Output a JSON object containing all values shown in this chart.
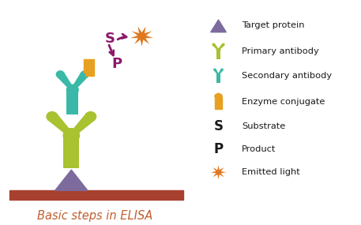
{
  "bg_color": "#ffffff",
  "title": "Basic steps in ELISA",
  "title_color": "#c06030",
  "title_fontsize": 10.5,
  "colors": {
    "target_protein": "#7d6b9e",
    "primary_ab": "#a8c230",
    "secondary_ab": "#3ab8a8",
    "enzyme": "#e8a020",
    "substrate_s": "#8b1a6b",
    "product_orange": "#e07820",
    "surface": "#a84030"
  },
  "legend_items": [
    {
      "label": "Target protein",
      "type": "triangle",
      "color": "#7d6b9e"
    },
    {
      "label": "Primary antibody",
      "type": "y_primary",
      "color": "#a8c230"
    },
    {
      "label": "Secondary antibody",
      "type": "y_secondary",
      "color": "#3ab8a8"
    },
    {
      "label": "Enzyme conjugate",
      "type": "rect",
      "color": "#e8a020"
    },
    {
      "label": "Substrate",
      "type": "text_s",
      "color": "#1a1a1a"
    },
    {
      "label": "Product",
      "type": "text_p",
      "color": "#1a1a1a"
    },
    {
      "label": "Emitted light",
      "type": "starburst",
      "color": "#e07820"
    }
  ]
}
